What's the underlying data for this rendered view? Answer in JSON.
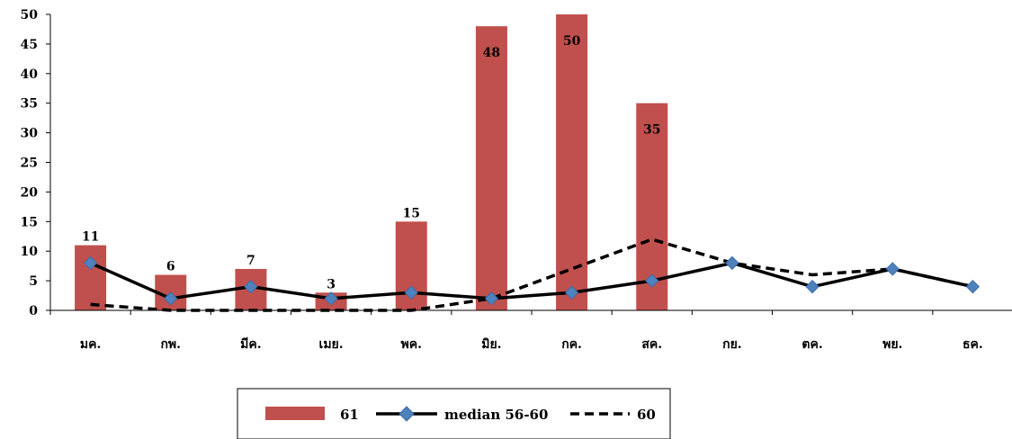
{
  "chart_data": {
    "type": "bar",
    "categories": [
      "มค.",
      "กพ.",
      "มีค.",
      "เมย.",
      "พค.",
      "มิย.",
      "กค.",
      "สค.",
      "กย.",
      "ตค.",
      "พย.",
      "ธค."
    ],
    "ylim": [
      0,
      50
    ],
    "yticks": [
      0,
      5,
      10,
      15,
      20,
      25,
      30,
      35,
      40,
      45,
      50
    ],
    "grid": false,
    "legend_position": "bottom",
    "series": [
      {
        "name": "61",
        "type": "bar",
        "color": "#c0504d",
        "values": [
          11,
          6,
          7,
          3,
          15,
          48,
          50,
          35,
          null,
          null,
          null,
          null
        ],
        "data_labels": [
          "11",
          "6",
          "7",
          "3",
          "15",
          "48",
          "50",
          "35",
          "",
          "",
          "",
          ""
        ]
      },
      {
        "name": "median 56-60",
        "type": "line",
        "color": "#000000",
        "marker": "diamond",
        "marker_color": "#4f81bd",
        "values": [
          8,
          2,
          4,
          2,
          3,
          2,
          3,
          5,
          8,
          4,
          7,
          4
        ]
      },
      {
        "name": "60",
        "type": "line",
        "color": "#000000",
        "dash": "dashed",
        "values": [
          1,
          0,
          0,
          0,
          0,
          2,
          7,
          12,
          8,
          6,
          7,
          4
        ]
      }
    ]
  }
}
